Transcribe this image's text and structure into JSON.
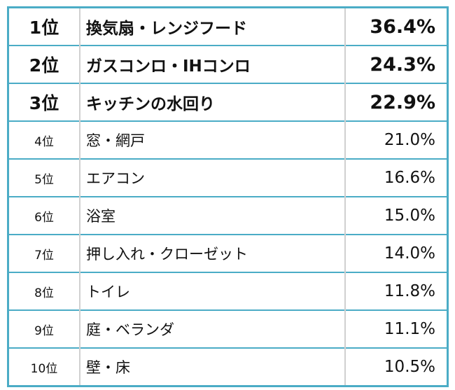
{
  "ranking": [
    {
      "rank": "1位",
      "item": "換気扇・レンジフード",
      "pct": "36.4%"
    },
    {
      "rank": "2位",
      "item": "ガスコンロ・IHコンロ",
      "pct": "24.3%"
    },
    {
      "rank": "3位",
      "item": "キッチンの水回り",
      "pct": "22.9%"
    },
    {
      "rank": "4位",
      "item": "窓・網戸",
      "pct": "21.0%"
    },
    {
      "rank": "5位",
      "item": "エアコン",
      "pct": "16.6%"
    },
    {
      "rank": "6位",
      "item": "浴室",
      "pct": "15.0%"
    },
    {
      "rank": "7位",
      "item": "押し入れ・クローゼット",
      "pct": "14.0%"
    },
    {
      "rank": "8位",
      "item": "トイレ",
      "pct": "11.8%"
    },
    {
      "rank": "9位",
      "item": "庭・ベランダ",
      "pct": "11.1%"
    },
    {
      "rank": "10位",
      "item": "壁・床",
      "pct": "10.5%"
    }
  ],
  "colors": {
    "border": "#4bacc6"
  }
}
